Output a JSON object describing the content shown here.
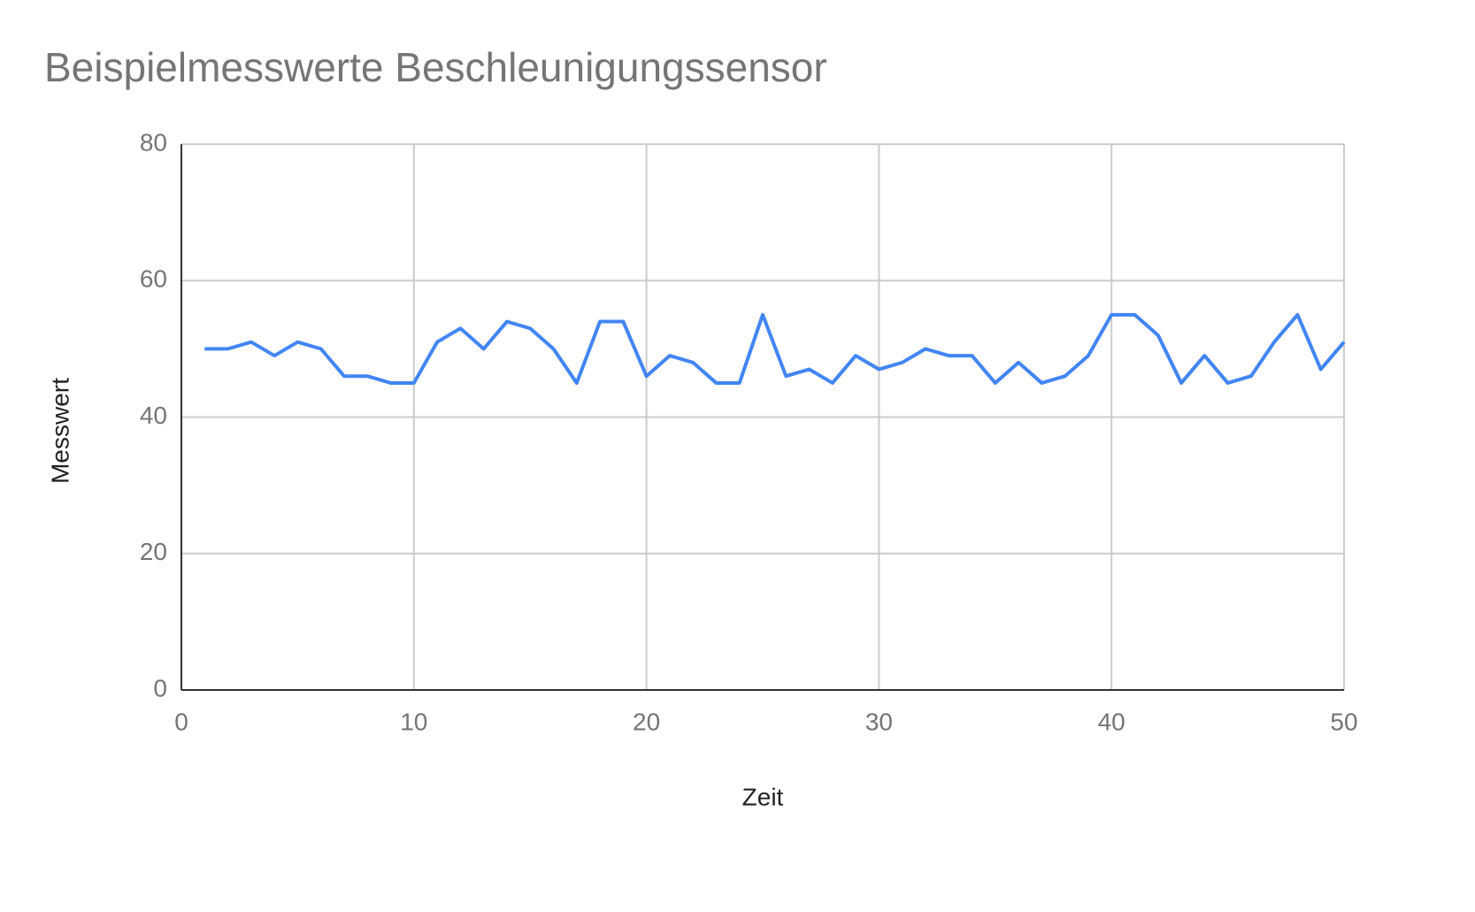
{
  "chart_data": {
    "type": "line",
    "title": "Beispielmesswerte Beschleunigungssensor",
    "x_label": "Zeit",
    "y_label": "Messwert",
    "x": [
      1,
      2,
      3,
      4,
      5,
      6,
      7,
      8,
      9,
      10,
      11,
      12,
      13,
      14,
      15,
      16,
      17,
      18,
      19,
      20,
      21,
      22,
      23,
      24,
      25,
      26,
      27,
      28,
      29,
      30,
      31,
      32,
      33,
      34,
      35,
      36,
      37,
      38,
      39,
      40,
      41,
      42,
      43,
      44,
      45,
      46,
      47,
      48,
      49,
      50
    ],
    "series": [
      {
        "name": "Messwert",
        "color": "#4285f4",
        "values": [
          50,
          50,
          51,
          49,
          51,
          50,
          46,
          46,
          45,
          45,
          51,
          53,
          50,
          54,
          53,
          50,
          45,
          54,
          54,
          46,
          49,
          48,
          45,
          45,
          55,
          46,
          47,
          45,
          49,
          47,
          48,
          50,
          49,
          49,
          45,
          48,
          45,
          46,
          49,
          55,
          55,
          52,
          45,
          49,
          45,
          46,
          51,
          55,
          47,
          51
        ]
      }
    ],
    "xlim": [
      0,
      50
    ],
    "xticks": [
      0,
      10,
      20,
      30,
      40,
      50
    ],
    "ylim": [
      0,
      80
    ],
    "yticks": [
      0,
      20,
      40,
      60,
      80
    ],
    "grid": true
  }
}
